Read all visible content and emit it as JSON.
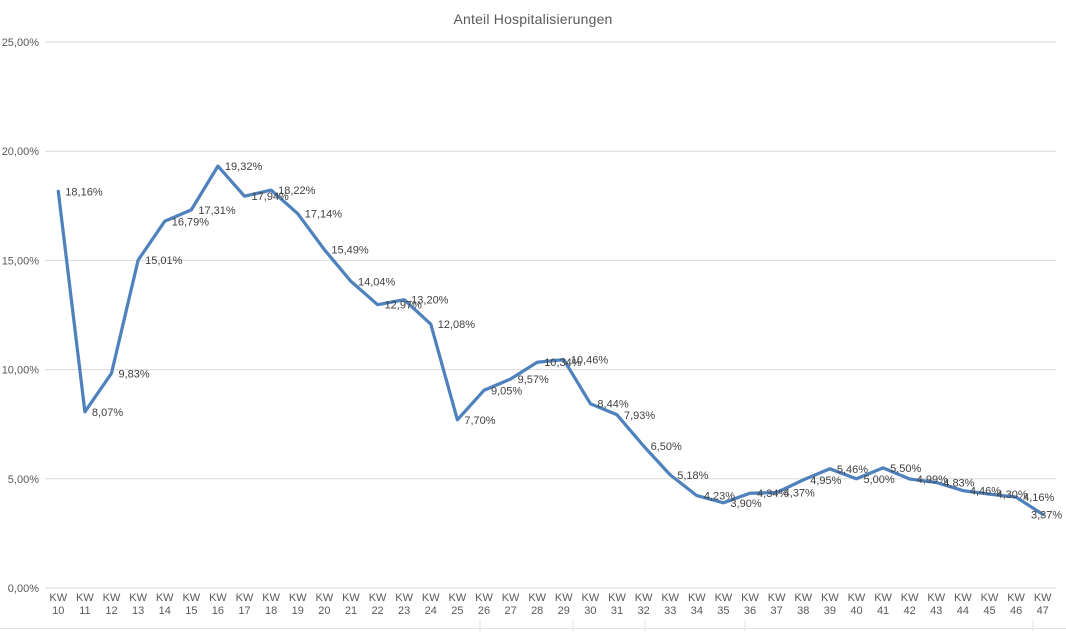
{
  "chart_data": {
    "type": "line",
    "title": "Anteil Hospitalisierungen",
    "x_tick_prefix": "KW",
    "categories": [
      "10",
      "11",
      "12",
      "13",
      "14",
      "15",
      "16",
      "17",
      "18",
      "19",
      "20",
      "21",
      "22",
      "23",
      "24",
      "25",
      "26",
      "27",
      "28",
      "29",
      "30",
      "31",
      "32",
      "33",
      "34",
      "35",
      "36",
      "37",
      "38",
      "39",
      "40",
      "41",
      "42",
      "43",
      "44",
      "45",
      "46",
      "47"
    ],
    "values": [
      18.16,
      8.07,
      9.83,
      15.01,
      16.79,
      17.31,
      19.32,
      17.94,
      18.22,
      17.14,
      15.49,
      14.04,
      12.97,
      13.2,
      12.08,
      7.7,
      9.05,
      9.57,
      10.34,
      10.46,
      8.44,
      7.93,
      6.5,
      5.18,
      4.23,
      3.9,
      4.34,
      4.37,
      4.95,
      5.46,
      5.0,
      5.5,
      4.99,
      4.83,
      4.46,
      4.3,
      4.16,
      3.37
    ],
    "point_labels": [
      "18,16%",
      "8,07%",
      "9,83%",
      "15,01%",
      "16,79%",
      "17,31%",
      "19,32%",
      "17,94%",
      "18,22%",
      "17,14%",
      "15,49%",
      "14,04%",
      "12,97%",
      "13,20%",
      "12,08%",
      "7,70%",
      "9,05%",
      "9,57%",
      "10,34%",
      "10,46%",
      "8,44%",
      "7,93%",
      "6,50%",
      "5,18%",
      "4,23%",
      "3,90%",
      "4,34%",
      "4,37%",
      "4,95%",
      "5,46%",
      "5,00%",
      "5,50%",
      "4,99%",
      "4,83%",
      "4,46%",
      "4,30%",
      "4,16%",
      "3,37%"
    ],
    "y_ticks": [
      {
        "value": 0,
        "label": "0,00%"
      },
      {
        "value": 5,
        "label": "5,00%"
      },
      {
        "value": 10,
        "label": "10,00%"
      },
      {
        "value": 15,
        "label": "15,00%"
      },
      {
        "value": 20,
        "label": "20,00%"
      },
      {
        "value": 25,
        "label": "25,00%"
      }
    ],
    "ylim": [
      0,
      25
    ],
    "grid": true,
    "legend": "none",
    "colors": {
      "line": "#4F81BD",
      "gridline": "#D9D9D9",
      "axis_text": "#595959",
      "label_text": "#404040",
      "title_text": "#595959",
      "sheet_border": "#E2E2E2",
      "background": "#FFFFFF"
    }
  }
}
